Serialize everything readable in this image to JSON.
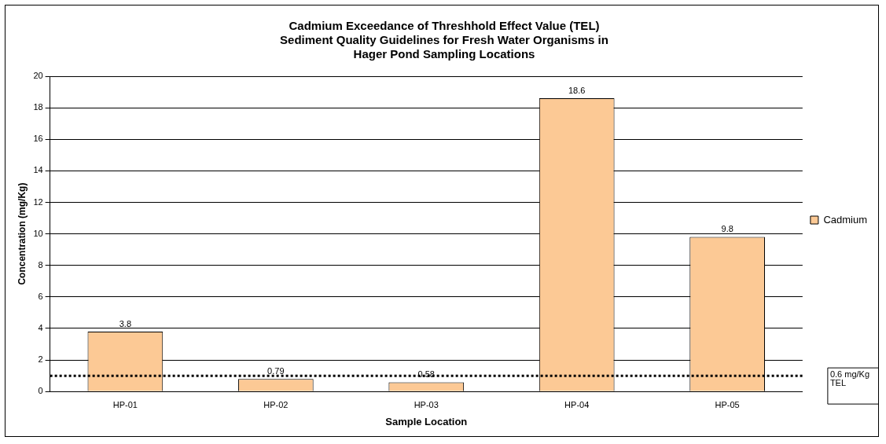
{
  "chart_data": {
    "type": "bar",
    "title": "Cadmium Exceedance of Threshhold Effect Value (TEL)\nSediment Quality Guidelines for Fresh Water Organisms in\nHager Pond Sampling Locations",
    "xlabel": "Sample Location",
    "ylabel": "Concentration (mg/Kg)",
    "categories": [
      "HP-01",
      "HP-02",
      "HP-03",
      "HP-04",
      "HP-05"
    ],
    "series": [
      {
        "name": "Cadmium",
        "color": "#fcc995",
        "values": [
          3.8,
          0.79,
          0.58,
          18.6,
          9.8
        ]
      }
    ],
    "ylim": [
      0,
      20
    ],
    "yticks": [
      0,
      2,
      4,
      6,
      8,
      10,
      12,
      14,
      16,
      18,
      20
    ],
    "grid": "y",
    "legend": "right",
    "data_labels": true,
    "ref_lines": [
      {
        "axis": "y",
        "value": 1,
        "label": "0.6 mg/Kg\nTEL",
        "color": "#000000",
        "line_style": "dotted"
      }
    ]
  }
}
